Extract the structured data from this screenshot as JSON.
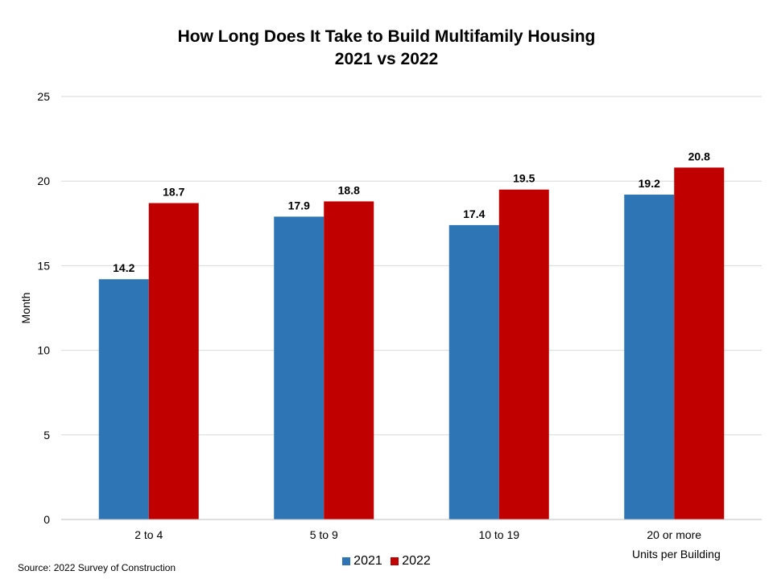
{
  "chart_data": {
    "type": "bar",
    "title_line1": "How Long Does It Take to Build Multifamily Housing",
    "title_line2": "2021 vs 2022",
    "ylabel": "Month",
    "xlabel": "Units per Building",
    "source": "Source: 2022 Survey of Construction",
    "categories": [
      "2 to 4",
      "5 to 9",
      "10 to 19",
      "20 or more"
    ],
    "series": [
      {
        "name": "2021",
        "color": "#2e75b6",
        "values": [
          14.2,
          17.9,
          17.4,
          19.2
        ]
      },
      {
        "name": "2022",
        "color": "#c00000",
        "values": [
          18.7,
          18.8,
          19.5,
          20.8
        ]
      }
    ],
    "ylim": [
      0,
      25
    ],
    "yticks": [
      0,
      5,
      10,
      15,
      20,
      25
    ],
    "grid": true,
    "legend_position": "bottom"
  }
}
